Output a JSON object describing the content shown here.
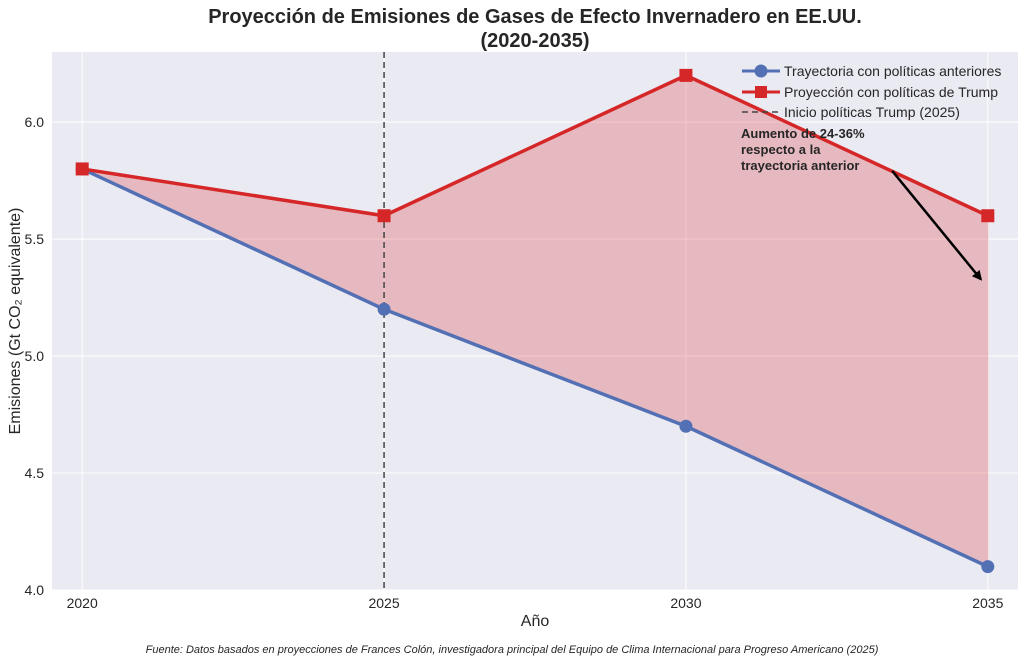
{
  "chart_data": {
    "type": "line",
    "title_lines": [
      "Proyección de Emisiones de Gases de Efecto Invernadero en EE.UU.",
      "(2020-2035)"
    ],
    "xlabel": "Año",
    "ylabel": "Emisiones (Gt CO₂ equivalente)",
    "x": [
      2020,
      2025,
      2030,
      2035
    ],
    "xticks": [
      "2020",
      "2025",
      "2030",
      "2035"
    ],
    "xlim": [
      2019.5,
      2035.5
    ],
    "yticks": [
      "4.0",
      "4.5",
      "5.0",
      "5.5",
      "6.0"
    ],
    "ylim": [
      4.0,
      6.3
    ],
    "grid": true,
    "series": [
      {
        "name": "Trayectoria con políticas anteriores",
        "values": [
          5.8,
          5.2,
          4.7,
          4.1
        ],
        "color": "#5470b5",
        "marker": "circle"
      },
      {
        "name": "Proyección con políticas de Trump",
        "values": [
          5.8,
          5.6,
          6.2,
          5.6
        ],
        "color": "#d62728",
        "marker": "square"
      }
    ],
    "fill_between": {
      "color": "#d62728",
      "opacity": 0.25
    },
    "vline": {
      "x": 2025,
      "label": "Inicio políticas Trump (2025)",
      "color": "#444444",
      "style": "dashed"
    },
    "annotation": {
      "lines": [
        "Aumento de 24-36%",
        "respecto a la",
        "trayectoria anterior"
      ],
      "arrow_from": [
        2033.5,
        5.8
      ],
      "arrow_to": [
        2035,
        5.32
      ]
    },
    "legend_position": "top-right",
    "source": "Fuente: Datos basados en proyecciones de Frances Colón, investigadora principal del Equipo de Clima Internacional para Progreso Americano (2025)"
  }
}
